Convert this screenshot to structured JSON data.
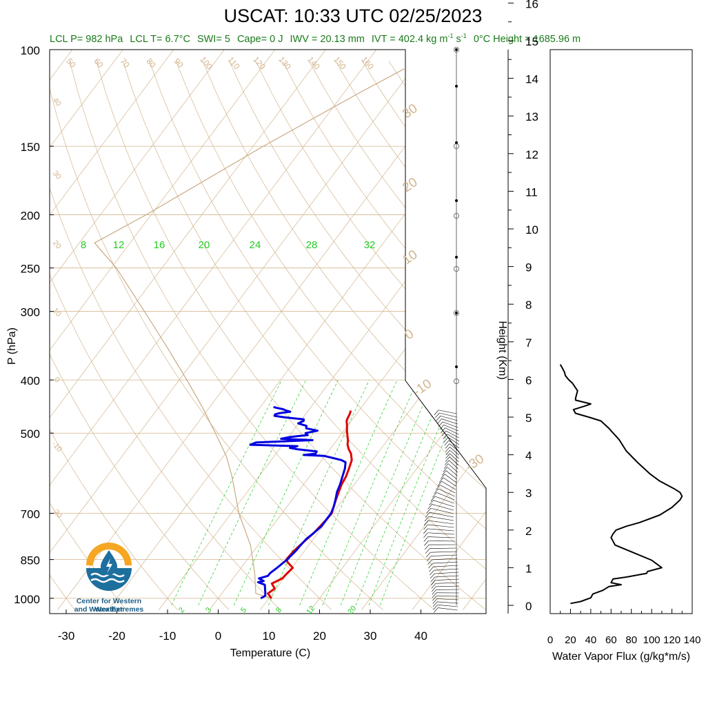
{
  "title": "USCAT: 10:33 UTC 02/25/2023",
  "stats": {
    "lcl_p": "LCL P= 982 hPa",
    "lcl_t": "LCL T= 6.7°C",
    "swi": "SWI= 5",
    "cape": "Cape= 0 J",
    "iwv": "IWV = 20.13 mm",
    "ivt_value": "IVT = 402.4 kg m",
    "ivt_exp1": "-1",
    "ivt_mid": "s",
    "ivt_exp2": "-1",
    "zero_c": "0°C Height = 1685.96 m"
  },
  "logo": {
    "line1": "Center for Western Weather",
    "line2": "and Water Extremes"
  },
  "colors": {
    "temperature": "#e00000",
    "dewpoint": "#0000e0",
    "mixing_ratio": "#22cc22",
    "dry_adiabat": "#d2b48c",
    "parcel": "#c8a882",
    "stats_text": "#1a7a1a",
    "logo_orange": "#f5a623",
    "logo_blue": "#1d6f9e"
  },
  "chart_data": [
    {
      "type": "line",
      "subtype": "skew-t",
      "xlabel": "Temperature (C)",
      "ylabel": "P (hPa)",
      "xlim": [
        -34,
        52
      ],
      "ylim": [
        1030,
        100
      ],
      "y_scale": "log",
      "x_ticks": [
        -30,
        -20,
        -10,
        0,
        10,
        20,
        30,
        40
      ],
      "y_ticks": [
        100,
        150,
        200,
        250,
        300,
        400,
        500,
        700,
        850,
        1000
      ],
      "mixing_ratio_labels_top": [
        "8",
        "12",
        "16",
        "20",
        "24",
        "28",
        "32"
      ],
      "mixing_ratio_labels_bottom": [
        "2",
        "3",
        "5",
        "8",
        "12",
        "20"
      ],
      "theta_labels_top": [
        "50",
        "60",
        "70",
        "80",
        "90",
        "100",
        "110",
        "120",
        "130",
        "140",
        "150",
        "160"
      ],
      "theta_labels_left": [
        "40",
        "30",
        "20",
        "10",
        "0",
        "-10",
        "-20"
      ],
      "theta_labels_right": [
        "30",
        "20",
        "10",
        "0",
        "-10",
        "-30"
      ],
      "series": [
        {
          "name": "Temperature",
          "p": [
            1000,
            980,
            960,
            940,
            920,
            900,
            880,
            860,
            850,
            820,
            800,
            760,
            720,
            700,
            660,
            620,
            600,
            580,
            560,
            545,
            535,
            525,
            515,
            505,
            495,
            485,
            475,
            470,
            462,
            455
          ],
          "t": [
            10.5,
            9.1,
            9.7,
            8.4,
            9.7,
            9.9,
            10.2,
            8.4,
            7.7,
            7.9,
            8.3,
            9.2,
            9.7,
            9.8,
            8.6,
            7.5,
            7.2,
            6.6,
            5.9,
            4.8,
            3.7,
            2.8,
            2.2,
            1.4,
            0.6,
            -0.1,
            -0.9,
            -1.1,
            -1.3,
            -1.6
          ]
        },
        {
          "name": "Dewpoint",
          "p": [
            1000,
            990,
            980,
            960,
            945,
            935,
            930,
            920,
            910,
            900,
            880,
            860,
            850,
            840,
            820,
            800,
            780,
            760,
            740,
            720,
            700,
            680,
            660,
            640,
            620,
            600,
            580,
            565,
            560,
            555,
            550,
            548,
            545,
            540,
            535,
            532,
            528,
            525,
            520,
            515,
            512,
            508,
            504,
            500,
            495,
            490,
            485,
            480,
            475,
            472,
            468,
            465,
            462,
            460,
            457,
            455,
            452,
            450,
            448
          ],
          "t": [
            8.4,
            8.9,
            8.6,
            7.8,
            7.2,
            5.5,
            6.4,
            5.1,
            6.5,
            6.5,
            7.1,
            7.6,
            7.9,
            8.0,
            8.3,
            8.4,
            8.6,
            9.2,
            9.7,
            9.7,
            9.7,
            9.2,
            8.5,
            7.7,
            7.2,
            6.5,
            5.8,
            5.0,
            3.9,
            1.9,
            -0.2,
            -4.3,
            -2.2,
            -2.3,
            -6.4,
            -8.1,
            -6.9,
            -16.4,
            -15.6,
            -4.8,
            -11.2,
            -9.6,
            -6.5,
            -7.2,
            -5.2,
            -7.8,
            -8.1,
            -10.1,
            -9.4,
            -9.6,
            -13.6,
            -15.9,
            -16.0,
            -15.4,
            -13.4,
            -14.3,
            -15.3,
            -16.5,
            -17.4
          ]
        },
        {
          "name": "Parcel",
          "p": [
            1000,
            980,
            900,
            800,
            700,
            600,
            550,
            500,
            450,
            400,
            350,
            300,
            250,
            225,
            200,
            150,
            120,
            105
          ],
          "t": [
            10.5,
            6.7,
            3.5,
            -1.5,
            -8.5,
            -15.3,
            -19.5,
            -25.0,
            -31.2,
            -38.5,
            -47.0,
            -57.0,
            -69.0,
            -77.0,
            -71.0,
            -58.0,
            -47.0,
            -40.0
          ]
        }
      ]
    },
    {
      "type": "line",
      "xlabel": "Water Vapor Flux (g/kg*m/s)",
      "ylabel": "Height (Km)",
      "xlim": [
        0,
        140
      ],
      "ylim": [
        0,
        16.5
      ],
      "x_ticks": [
        "0",
        "20",
        "40",
        "60",
        "80",
        "100",
        "120",
        "140"
      ],
      "y_ticks": [
        "0",
        "1",
        "2",
        "3",
        "4",
        "5",
        "6",
        "7",
        "8",
        "9",
        "10",
        "11",
        "12",
        "13",
        "14",
        "15",
        "16"
      ],
      "series": [
        {
          "name": "Water Vapor Flux",
          "height_km": [
            0.05,
            0.1,
            0.2,
            0.3,
            0.4,
            0.5,
            0.55,
            0.6,
            0.7,
            0.75,
            0.85,
            0.9,
            1.0,
            1.1,
            1.2,
            1.4,
            1.6,
            1.8,
            1.9,
            2.0,
            2.1,
            2.2,
            2.4,
            2.6,
            2.8,
            2.9,
            3.0,
            3.1,
            3.3,
            3.5,
            3.8,
            4.1,
            4.4,
            4.7,
            4.9,
            5.0,
            5.1,
            5.2,
            5.3,
            5.35,
            5.45,
            5.5,
            5.7,
            5.9,
            6.0,
            6.1,
            6.2,
            6.3,
            6.4
          ],
          "flux": [
            20,
            30,
            40,
            42,
            52,
            58,
            70,
            60,
            62,
            75,
            95,
            96,
            110,
            105,
            100,
            82,
            64,
            60,
            62,
            65,
            75,
            88,
            108,
            120,
            128,
            130,
            128,
            122,
            108,
            98,
            86,
            75,
            68,
            58,
            50,
            38,
            25,
            23,
            35,
            40,
            25,
            25,
            27,
            22,
            18,
            15,
            14,
            12,
            10
          ]
        }
      ]
    }
  ]
}
